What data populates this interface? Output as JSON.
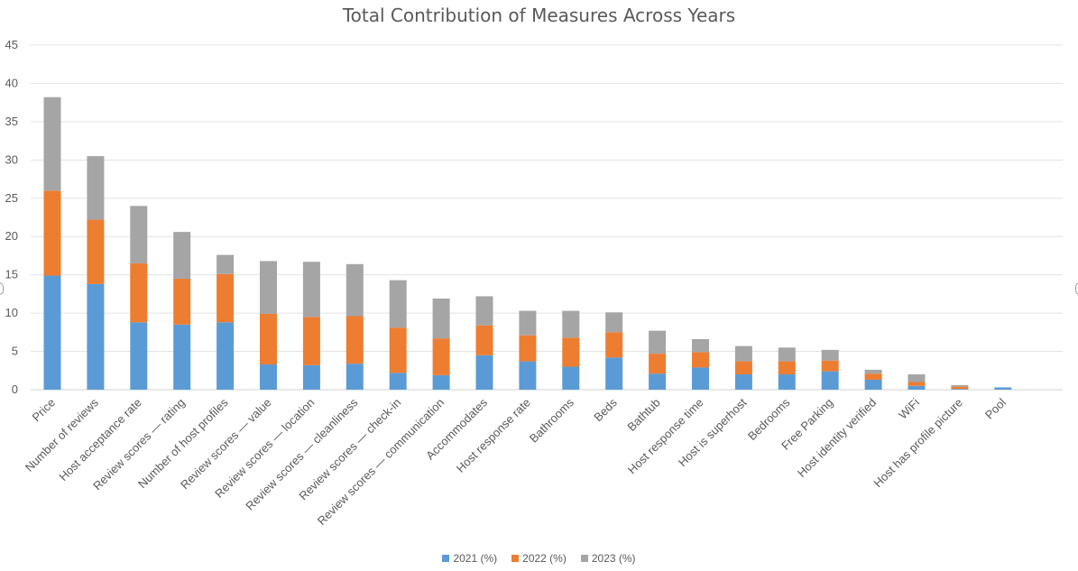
{
  "chart_data": {
    "type": "bar",
    "stacked": true,
    "title": "Total Contribution of Measures Across Years",
    "xlabel": "",
    "ylabel": "",
    "ylim": [
      0,
      45
    ],
    "yticks": [
      0,
      5,
      10,
      15,
      20,
      25,
      30,
      35,
      40,
      45
    ],
    "grid": true,
    "legend_position": "bottom",
    "categories": [
      "Price",
      "Number of reviews",
      "Host acceptance rate",
      "Review scores — rating",
      "Number of host profiles",
      "Review scores — value",
      "Review scores — location",
      "Review scores — cleanliness",
      "Review scores — check-in",
      "Review scores — communication",
      "Accommodates",
      "Host response rate",
      "Bathrooms",
      "Beds",
      "Bathtub",
      "Host response time",
      "Host is superhost",
      "Bedrooms",
      "Free Parking",
      "Host identity verified",
      "WiFi",
      "Host has profile picture",
      "Pool"
    ],
    "series": [
      {
        "name": "2021 (%)",
        "color": "#5b9bd5",
        "values": [
          14.9,
          13.8,
          8.8,
          8.5,
          8.8,
          3.3,
          3.2,
          3.4,
          2.2,
          1.9,
          4.5,
          3.7,
          3.0,
          4.2,
          2.1,
          2.9,
          2.0,
          2.0,
          2.4,
          1.3,
          0.5,
          0.1,
          0.3
        ]
      },
      {
        "name": "2022 (%)",
        "color": "#ed7d31",
        "values": [
          11.1,
          8.4,
          7.7,
          6.0,
          6.3,
          6.6,
          6.3,
          6.2,
          5.9,
          4.8,
          3.9,
          3.4,
          3.8,
          3.3,
          2.6,
          2.0,
          1.7,
          1.7,
          1.4,
          0.8,
          0.5,
          0.3,
          0.0
        ]
      },
      {
        "name": "2023 (%)",
        "color": "#a5a5a5",
        "values": [
          12.2,
          8.3,
          7.5,
          6.1,
          2.5,
          6.9,
          7.2,
          6.8,
          6.2,
          5.2,
          3.8,
          3.2,
          3.5,
          2.6,
          3.0,
          1.7,
          2.0,
          1.8,
          1.4,
          0.5,
          1.0,
          0.2,
          0.0
        ]
      }
    ]
  }
}
